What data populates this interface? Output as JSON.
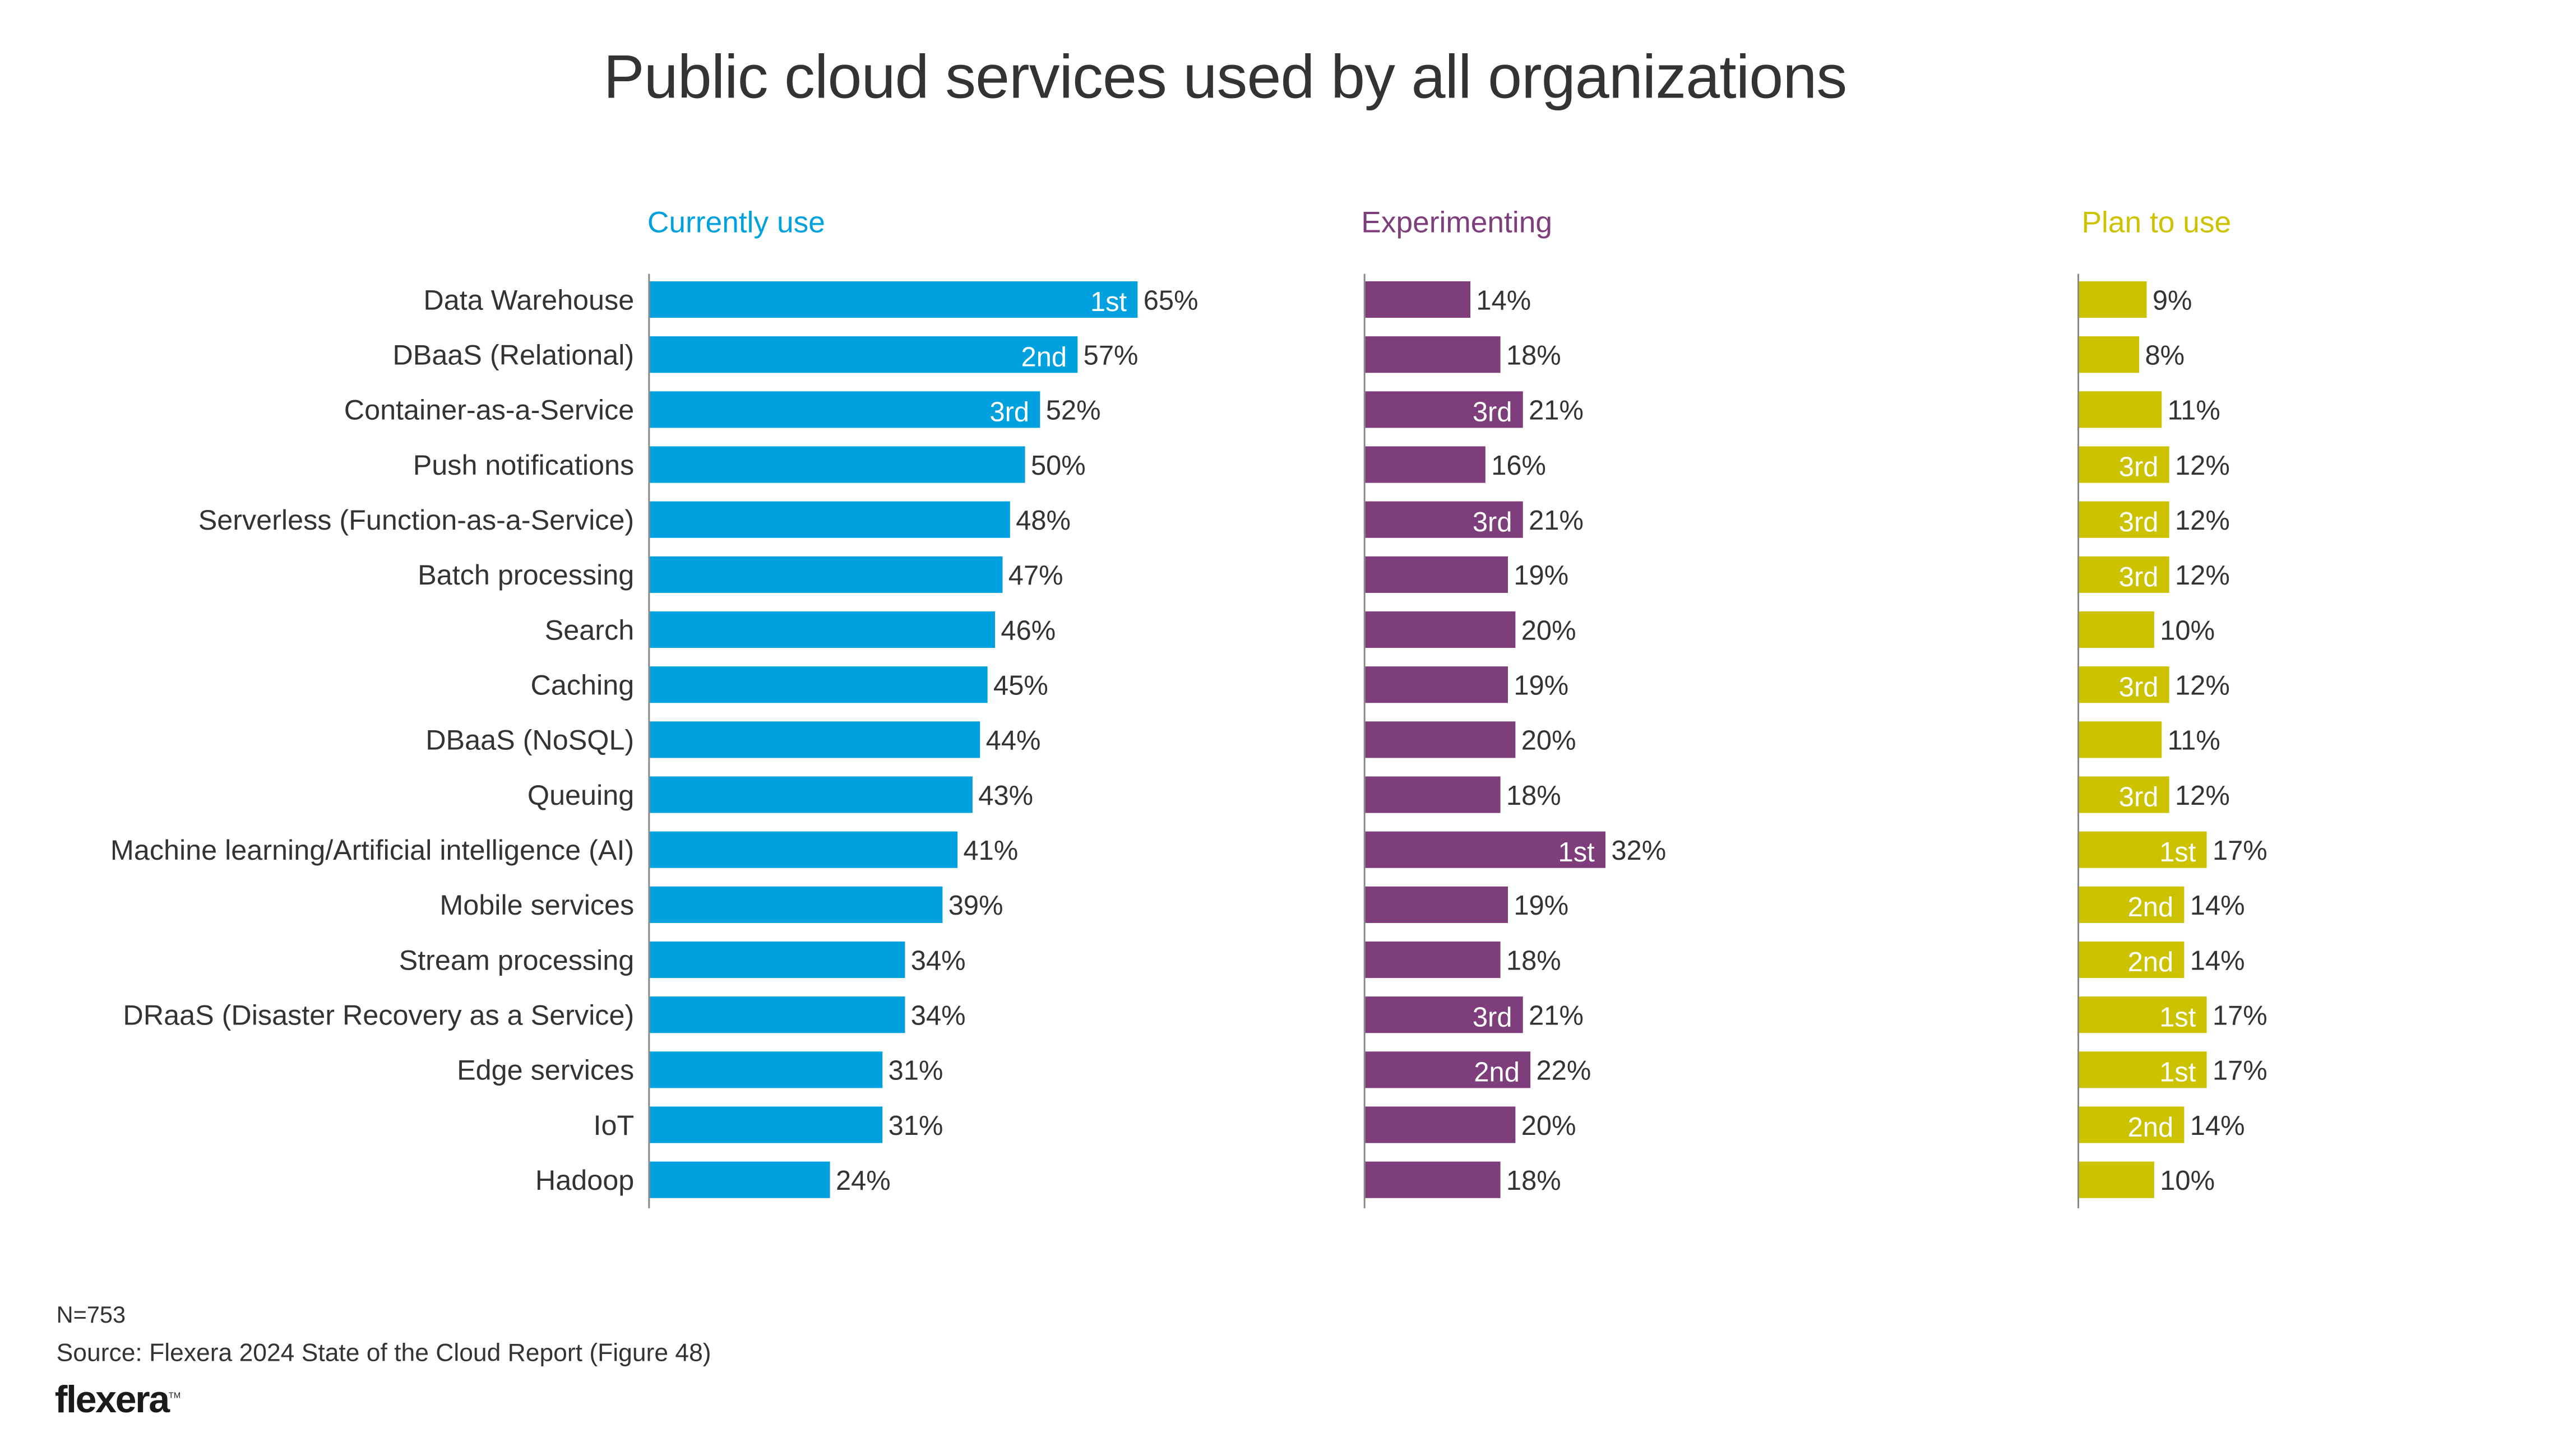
{
  "chart_data": {
    "type": "bar",
    "orientation": "horizontal",
    "title": "Public cloud services used by all organizations",
    "xlabel": "",
    "ylabel": "",
    "xlim": [
      0,
      100
    ],
    "grid": false,
    "value_suffix": "%",
    "categories": [
      "Data Warehouse",
      "DBaaS (Relational)",
      "Container-as-a-Service",
      "Push notifications",
      "Serverless (Function-as-a-Service)",
      "Batch processing",
      "Search",
      "Caching",
      "DBaaS (NoSQL)",
      "Queuing",
      "Machine learning/Artificial intelligence (AI)",
      "Mobile services",
      "Stream processing",
      "DRaaS (Disaster Recovery as a Service)",
      "Edge services",
      "IoT",
      "Hadoop"
    ],
    "series": [
      {
        "name": "Currently use",
        "color": "#00A1DE",
        "values": [
          65,
          57,
          52,
          50,
          48,
          47,
          46,
          45,
          44,
          43,
          41,
          39,
          34,
          34,
          31,
          31,
          24
        ],
        "ranks": [
          "1st",
          "2nd",
          "3rd",
          "",
          "",
          "",
          "",
          "",
          "",
          "",
          "",
          "",
          "",
          "",
          "",
          "",
          ""
        ]
      },
      {
        "name": "Experimenting",
        "color": "#7E3D7B",
        "values": [
          14,
          18,
          21,
          16,
          21,
          19,
          20,
          19,
          20,
          18,
          32,
          19,
          18,
          21,
          22,
          20,
          18
        ],
        "ranks": [
          "",
          "",
          "3rd",
          "",
          "3rd",
          "",
          "",
          "",
          "",
          "",
          "1st",
          "",
          "",
          "3rd",
          "2nd",
          "",
          ""
        ]
      },
      {
        "name": "Plan to use",
        "color": "#CCC200",
        "values": [
          9,
          8,
          11,
          12,
          12,
          12,
          10,
          12,
          11,
          12,
          17,
          14,
          14,
          17,
          17,
          14,
          10
        ],
        "ranks": [
          "",
          "",
          "",
          "3rd",
          "3rd",
          "3rd",
          "",
          "3rd",
          "",
          "3rd",
          "1st",
          "2nd",
          "2nd",
          "1st",
          "1st",
          "2nd",
          ""
        ]
      }
    ]
  },
  "footer": {
    "sample_size": "N=753",
    "source": "Source: Flexera 2024 State of the Cloud Report (Figure 48)",
    "logo_text": "flexera",
    "logo_mark": "TM"
  },
  "colors": {
    "text": "#333333",
    "axis": "#888888",
    "rank_text": "#ffffff"
  }
}
